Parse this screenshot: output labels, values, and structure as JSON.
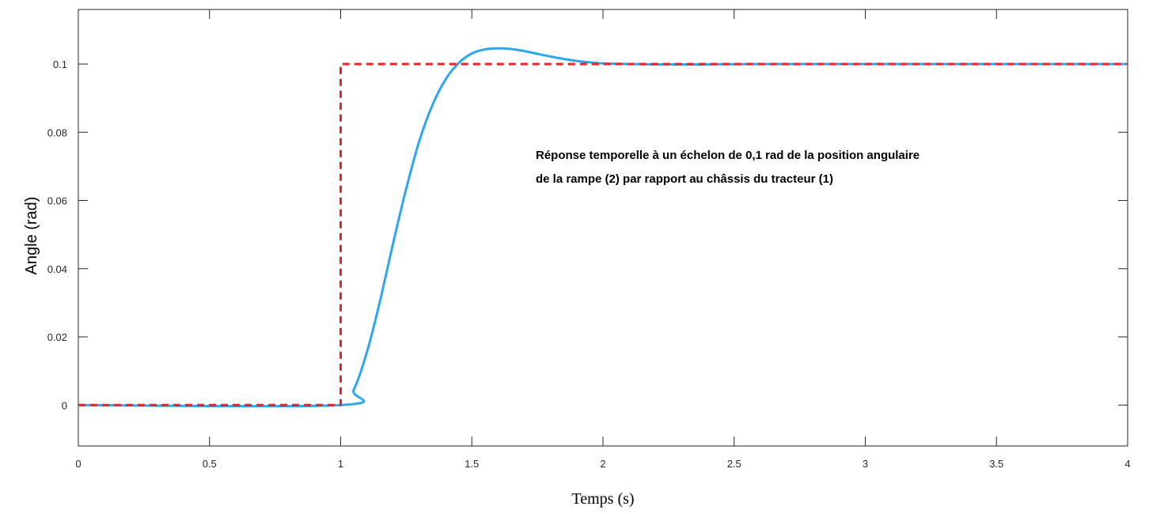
{
  "chart_data": {
    "type": "line",
    "xlabel": "Temps (s)",
    "ylabel": "Angle (rad)",
    "xlim": [
      0,
      4
    ],
    "ylim": [
      -0.012,
      0.116
    ],
    "x_ticks": [
      0,
      0.5,
      1,
      1.5,
      2,
      2.5,
      3,
      3.5,
      4
    ],
    "x_tick_labels": [
      "0",
      "0.5",
      "1",
      "1.5",
      "2",
      "2.5",
      "3",
      "3.5",
      "4"
    ],
    "y_ticks": [
      0,
      0.02,
      0.04,
      0.06,
      0.08,
      0.1
    ],
    "y_tick_labels": [
      "0",
      "0.02",
      "0.04",
      "0.06",
      "0.08",
      "0.1"
    ],
    "grid": false,
    "annotation": {
      "lines": [
        "Réponse temporelle à un échelon de 0,1 rad de la position angulaire",
        "de la rampe (2) par rapport au châssis du tracteur (1)"
      ]
    },
    "series": [
      {
        "color": "#2ca7ee",
        "style": "solid",
        "x": [
          0,
          1.0,
          1.05,
          1.1,
          1.15,
          1.2,
          1.25,
          1.3,
          1.35,
          1.4,
          1.45,
          1.5,
          1.55,
          1.6,
          1.65,
          1.7,
          1.75,
          1.8,
          1.85,
          1.9,
          1.95,
          2.0,
          2.1,
          2.2,
          2.4,
          2.6,
          3.0,
          3.5,
          4.0
        ],
        "y": [
          0,
          0,
          0.0045,
          0.0155,
          0.0305,
          0.0475,
          0.0635,
          0.0775,
          0.088,
          0.0955,
          0.1003,
          0.1031,
          0.1043,
          0.1046,
          0.1044,
          0.1038,
          0.103,
          0.1022,
          0.1015,
          0.1009,
          0.1005,
          0.1002,
          0.1,
          0.0999,
          0.0999,
          0.1,
          0.1,
          0.1,
          0.1
        ]
      },
      {
        "color": "#e8222b",
        "style": "dashed",
        "x": [
          0,
          1.0,
          1.0,
          4.0
        ],
        "y": [
          0,
          0,
          0.1,
          0.1
        ]
      }
    ]
  }
}
